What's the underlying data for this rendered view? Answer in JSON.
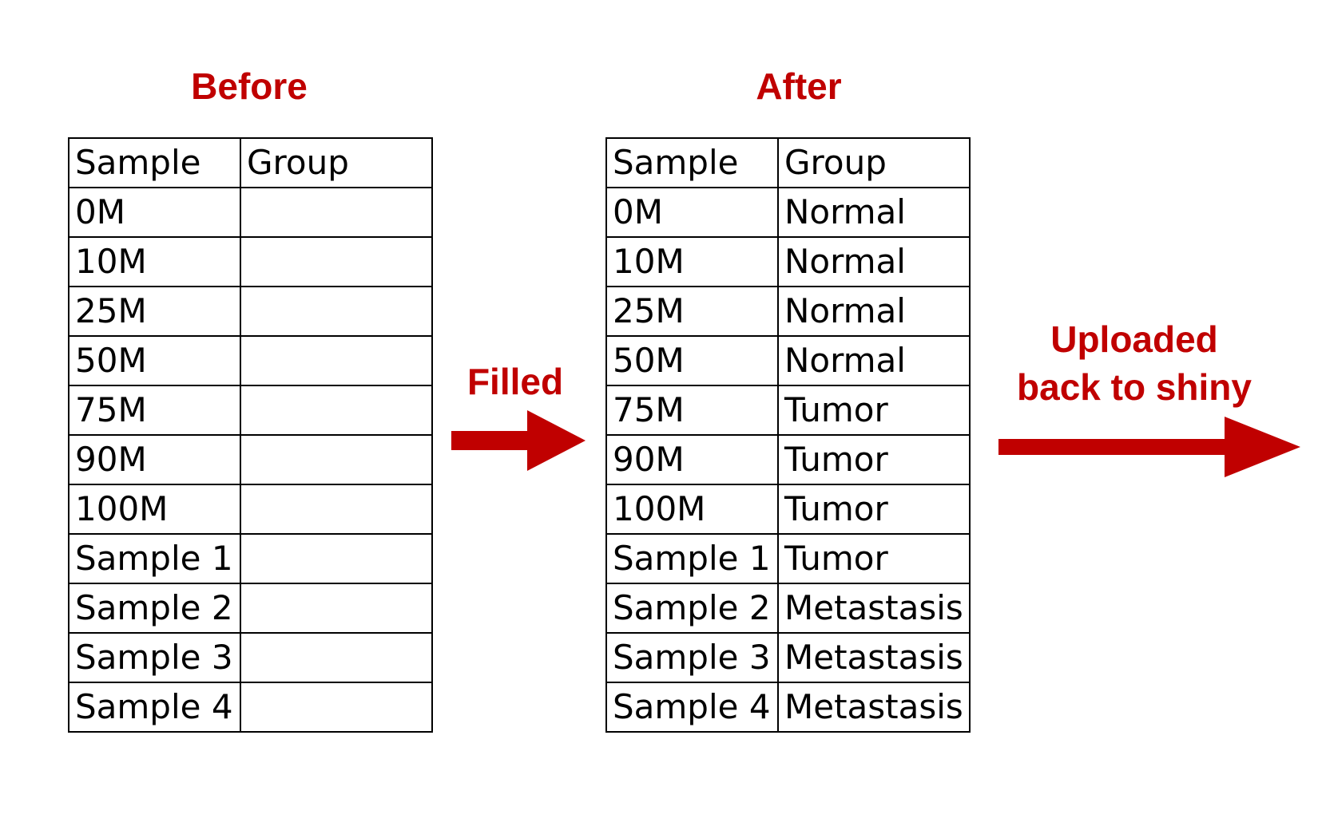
{
  "before": {
    "title": "Before",
    "headers": [
      "Sample",
      "Group"
    ],
    "rows": [
      [
        "0M",
        ""
      ],
      [
        "10M",
        ""
      ],
      [
        "25M",
        ""
      ],
      [
        "50M",
        ""
      ],
      [
        "75M",
        ""
      ],
      [
        "90M",
        ""
      ],
      [
        "100M",
        ""
      ],
      [
        "Sample 1",
        ""
      ],
      [
        "Sample 2",
        ""
      ],
      [
        "Sample 3",
        ""
      ],
      [
        "Sample 4",
        ""
      ]
    ]
  },
  "after": {
    "title": "After",
    "headers": [
      "Sample",
      "Group"
    ],
    "rows": [
      [
        "0M",
        "Normal"
      ],
      [
        "10M",
        "Normal"
      ],
      [
        "25M",
        "Normal"
      ],
      [
        "50M",
        "Normal"
      ],
      [
        "75M",
        "Tumor"
      ],
      [
        "90M",
        "Tumor"
      ],
      [
        "100M",
        "Tumor"
      ],
      [
        "Sample 1",
        "Tumor"
      ],
      [
        "Sample 2",
        "Metastasis"
      ],
      [
        "Sample 3",
        "Metastasis"
      ],
      [
        "Sample 4",
        "Metastasis"
      ]
    ]
  },
  "arrows": {
    "filled": "Filled",
    "uploaded_line1": "Uploaded",
    "uploaded_line2": "back to shiny"
  },
  "colors": {
    "accent": "#c00000",
    "grid": "#000000"
  }
}
